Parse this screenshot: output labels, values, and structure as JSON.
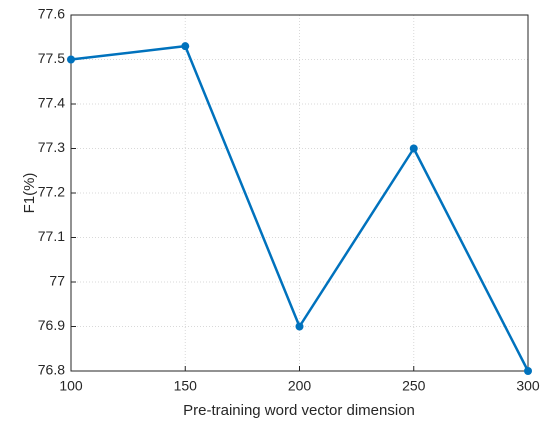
{
  "chart_data": {
    "type": "line",
    "xlabel": "Pre-training word vector dimension",
    "ylabel": "F1(%)",
    "x": [
      100,
      150,
      200,
      250,
      300
    ],
    "values": [
      77.5,
      77.53,
      76.9,
      77.3,
      76.8
    ],
    "color": "#0072bd",
    "xlim": [
      100,
      300
    ],
    "xticks": [
      100,
      150,
      200,
      250,
      300
    ],
    "ylim": [
      76.8,
      77.6
    ],
    "yticks": [
      76.8,
      76.9,
      77,
      77.1,
      77.2,
      77.3,
      77.4,
      77.5,
      77.6
    ],
    "grid": true
  }
}
